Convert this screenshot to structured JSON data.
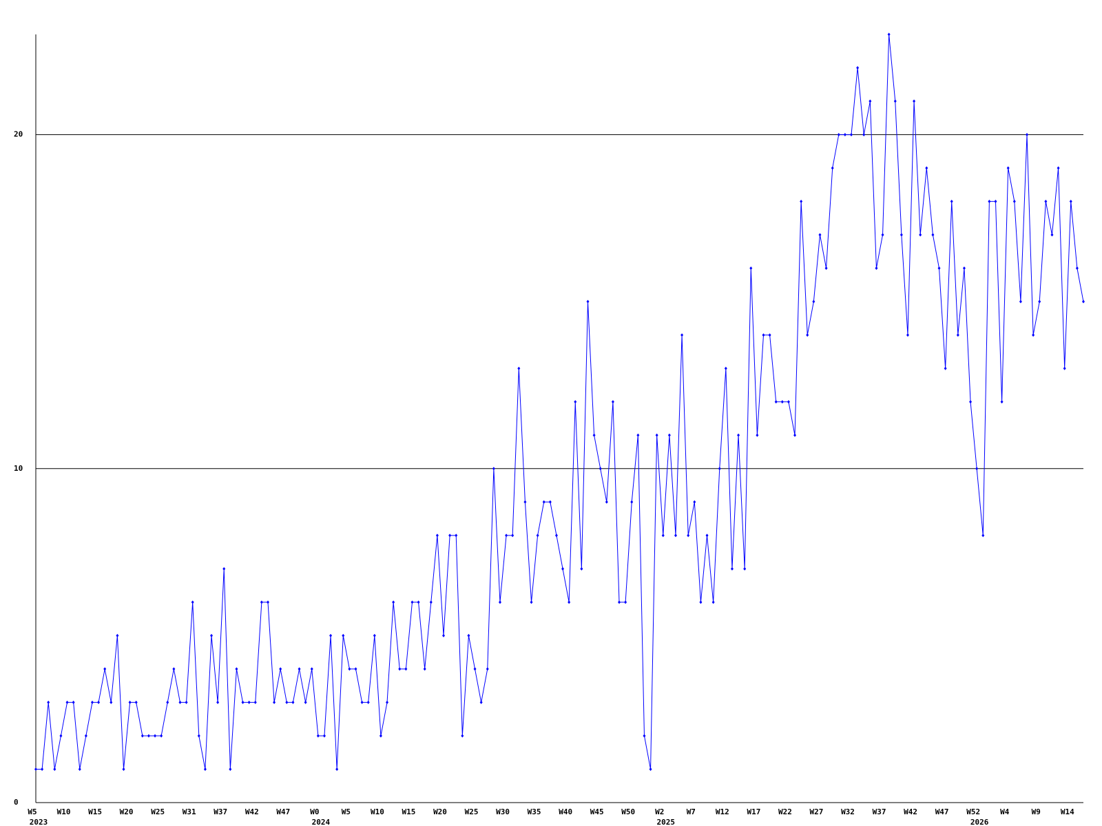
{
  "chart_data": {
    "type": "line",
    "color": "#0000ff",
    "ylim": [
      0,
      23
    ],
    "yticks": [
      0,
      10,
      20
    ],
    "grid": true,
    "values": [
      1,
      1,
      3,
      1,
      2,
      3,
      3,
      1,
      2,
      3,
      3,
      4,
      3,
      5,
      1,
      3,
      3,
      2,
      2,
      2,
      2,
      3,
      4,
      3,
      3,
      6,
      2,
      1,
      5,
      3,
      7,
      1,
      4,
      3,
      3,
      3,
      6,
      6,
      3,
      4,
      3,
      3,
      4,
      3,
      4,
      2,
      2,
      5,
      1,
      5,
      4,
      4,
      3,
      3,
      5,
      2,
      3,
      6,
      4,
      4,
      6,
      6,
      4,
      6,
      8,
      5,
      8,
      8,
      2,
      5,
      4,
      3,
      4,
      10,
      6,
      8,
      8,
      13,
      9,
      6,
      8,
      9,
      9,
      8,
      7,
      6,
      12,
      7,
      15,
      11,
      10,
      9,
      12,
      6,
      6,
      9,
      11,
      2,
      1,
      11,
      8,
      11,
      8,
      14,
      8,
      9,
      6,
      8,
      6,
      10,
      13,
      7,
      11,
      7,
      16,
      11,
      14,
      14,
      12,
      12,
      12,
      11,
      18,
      14,
      15,
      17,
      16,
      19,
      20,
      20,
      20,
      22,
      20,
      21,
      16,
      17,
      23,
      21,
      17,
      14,
      21,
      17,
      19,
      17,
      16,
      13,
      18,
      14,
      16,
      12,
      10,
      8,
      18,
      18,
      12,
      19,
      18,
      15,
      20,
      14,
      15,
      18,
      17,
      19,
      13,
      18,
      16,
      15
    ],
    "categories": [
      "W5",
      null,
      null,
      null,
      null,
      "W10",
      null,
      null,
      null,
      null,
      "W15",
      null,
      null,
      null,
      null,
      "W20",
      null,
      null,
      null,
      null,
      "W25",
      null,
      null,
      null,
      null,
      "W31",
      null,
      null,
      null,
      null,
      "W37",
      null,
      null,
      null,
      null,
      "W42",
      null,
      null,
      null,
      null,
      "W47",
      null,
      null,
      null,
      null,
      "W0",
      null,
      null,
      null,
      null,
      "W5",
      null,
      null,
      null,
      null,
      "W10",
      null,
      null,
      null,
      null,
      "W15",
      null,
      null,
      null,
      null,
      "W20",
      null,
      null,
      null,
      null,
      "W25",
      null,
      null,
      null,
      null,
      "W30",
      null,
      null,
      null,
      null,
      "W35",
      null,
      null,
      null,
      null,
      "W40",
      null,
      null,
      null,
      null,
      "W45",
      null,
      null,
      null,
      null,
      "W50",
      null,
      null,
      null,
      null,
      "W2",
      null,
      null,
      null,
      null,
      "W7",
      null,
      null,
      null,
      null,
      "W12",
      null,
      null,
      null,
      null,
      "W17",
      null,
      null,
      null,
      null,
      "W22",
      null,
      null,
      null,
      null,
      "W27",
      null,
      null,
      null,
      null,
      "W32",
      null,
      null,
      null,
      null,
      "W37",
      null,
      null,
      null,
      null,
      "W42",
      null,
      null,
      null,
      null,
      "W47",
      null,
      null,
      null,
      null,
      "W52",
      null,
      null,
      null,
      null,
      "W4",
      null,
      null,
      null,
      null,
      "W9",
      null,
      null,
      null,
      null,
      "W14",
      null,
      null
    ],
    "x_year_labels": [
      "2023",
      null,
      null,
      null,
      null,
      null,
      null,
      null,
      null,
      null,
      null,
      null,
      null,
      null,
      null,
      null,
      null,
      null,
      null,
      null,
      null,
      null,
      null,
      null,
      null,
      null,
      null,
      null,
      null,
      null,
      null,
      null,
      null,
      null,
      null,
      null,
      null,
      null,
      null,
      null,
      null,
      null,
      null,
      null,
      null,
      "2024",
      null,
      null,
      null,
      null,
      null,
      null,
      null,
      null,
      null,
      null,
      null,
      null,
      null,
      null,
      null,
      null,
      null,
      null,
      null,
      null,
      null,
      null,
      null,
      null,
      null,
      null,
      null,
      null,
      null,
      null,
      null,
      null,
      null,
      null,
      null,
      null,
      null,
      null,
      null,
      null,
      null,
      null,
      null,
      null,
      null,
      null,
      null,
      null,
      null,
      null,
      null,
      null,
      null,
      null,
      "2025",
      null,
      null,
      null,
      null,
      null,
      null,
      null,
      null,
      null,
      null,
      null,
      null,
      null,
      null,
      null,
      null,
      null,
      null,
      null,
      null,
      null,
      null,
      null,
      null,
      null,
      null,
      null,
      null,
      null,
      null,
      null,
      null,
      null,
      null,
      null,
      null,
      null,
      null,
      null,
      null,
      null,
      null,
      null,
      null,
      null,
      null,
      null,
      null,
      null,
      "2026",
      null,
      null,
      null,
      null,
      null,
      null,
      null,
      null,
      null,
      null,
      null,
      null,
      null,
      null,
      null,
      null,
      null
    ]
  }
}
